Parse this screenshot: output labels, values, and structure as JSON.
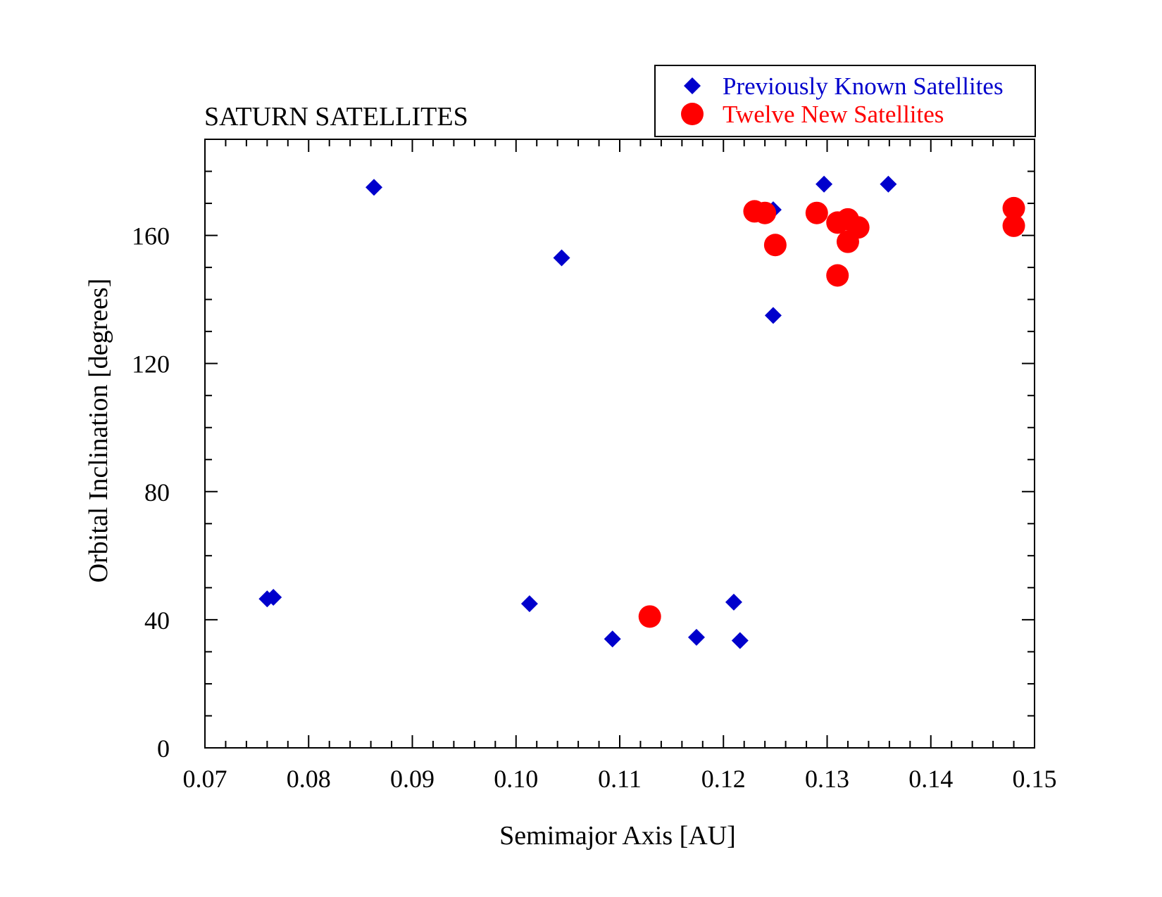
{
  "chart_data": {
    "type": "scatter",
    "title": "SATURN SATELLITES",
    "xlabel": "Semimajor Axis [AU]",
    "ylabel": "Orbital Inclination [degrees]",
    "xlim": [
      0.07,
      0.15
    ],
    "ylim": [
      0,
      190
    ],
    "x_ticks": [
      0.07,
      0.08,
      0.09,
      0.1,
      0.11,
      0.12,
      0.13,
      0.14,
      0.15
    ],
    "x_tick_labels": [
      "0.07",
      "0.08",
      "0.09",
      "0.10",
      "0.11",
      "0.12",
      "0.13",
      "0.14",
      "0.15"
    ],
    "y_ticks": [
      0,
      40,
      80,
      120,
      160
    ],
    "y_tick_labels": [
      "0",
      "40",
      "80",
      "120",
      "160"
    ],
    "grid": false,
    "legend_position": "top-right",
    "series": [
      {
        "name": "Previously Known Satellites",
        "marker": "diamond",
        "color": "#0000cc",
        "points": [
          {
            "x": 0.076,
            "y": 46.5
          },
          {
            "x": 0.0766,
            "y": 47.0
          },
          {
            "x": 0.0863,
            "y": 175.0
          },
          {
            "x": 0.1013,
            "y": 45.0
          },
          {
            "x": 0.1044,
            "y": 153.0
          },
          {
            "x": 0.1093,
            "y": 34.0
          },
          {
            "x": 0.1174,
            "y": 34.5
          },
          {
            "x": 0.121,
            "y": 45.5
          },
          {
            "x": 0.1216,
            "y": 33.5
          },
          {
            "x": 0.1248,
            "y": 168.0
          },
          {
            "x": 0.1248,
            "y": 135.0
          },
          {
            "x": 0.1297,
            "y": 176.0
          },
          {
            "x": 0.1359,
            "y": 176.0
          }
        ]
      },
      {
        "name": "Twelve New Satellites",
        "marker": "circle",
        "color": "#ff0000",
        "points": [
          {
            "x": 0.1129,
            "y": 41.0
          },
          {
            "x": 0.123,
            "y": 167.5
          },
          {
            "x": 0.124,
            "y": 167.0
          },
          {
            "x": 0.125,
            "y": 157.0
          },
          {
            "x": 0.129,
            "y": 167.0
          },
          {
            "x": 0.131,
            "y": 164.0
          },
          {
            "x": 0.132,
            "y": 165.0
          },
          {
            "x": 0.133,
            "y": 162.5
          },
          {
            "x": 0.132,
            "y": 158.0
          },
          {
            "x": 0.131,
            "y": 147.5
          },
          {
            "x": 0.148,
            "y": 168.5
          },
          {
            "x": 0.148,
            "y": 163.0
          }
        ]
      }
    ]
  }
}
